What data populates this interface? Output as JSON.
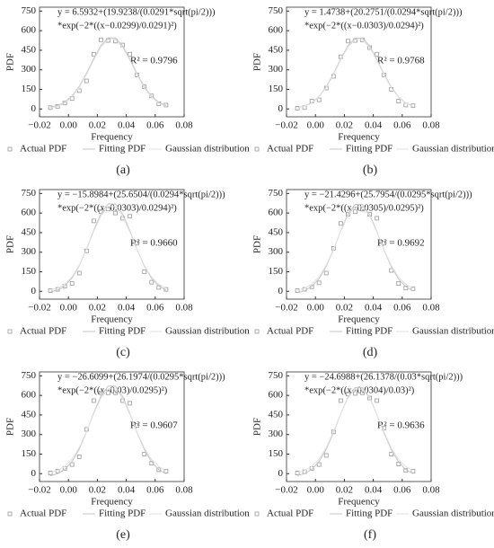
{
  "chart_data": [
    {
      "type": "scatter",
      "label": "(a)",
      "xlabel": "Frequency",
      "ylabel": "PDF",
      "equation": [
        "y = 6.5932+(19.9238/(0.0291*sqrt(pi/2)))",
        "*exp(−2*((x−0.0299)/0.0291)²)"
      ],
      "r2": "R² = 0.9796",
      "xlim": [
        -0.02,
        0.08
      ],
      "ylim": [
        -60,
        780
      ],
      "xticks": [
        {
          "value": -0.02,
          "label": "−0.02"
        },
        {
          "value": 0,
          "label": "0.00"
        },
        0.02,
        0.04,
        0.06,
        0.08
      ],
      "yticks": [
        0,
        150,
        300,
        450,
        600,
        750
      ],
      "x": [
        -0.0125,
        -0.0075,
        -0.0025,
        0.0025,
        0.0075,
        0.0125,
        0.0175,
        0.0225,
        0.0275,
        0.0325,
        0.0375,
        0.0425,
        0.0475,
        0.0525,
        0.0575,
        0.0625,
        0.0675
      ],
      "series": [
        {
          "name": "Actual PDF",
          "color": "#999999",
          "mode": "marker",
          "values": [
            10,
            20,
            45,
            80,
            140,
            215,
            420,
            530,
            525,
            520,
            490,
            420,
            260,
            170,
            100,
            40,
            30
          ]
        },
        {
          "name": "Fitting PDF",
          "color": "#c4c4c4",
          "mode": "line",
          "values": [
            14.4,
            26.7,
            52.4,
            99.1,
            173.3,
            273.7,
            386.4,
            486.5,
            545.3,
            544.0,
            483.3,
            381.7,
            269.2,
            169.9,
            97.1,
            51.0,
            26.0
          ]
        },
        {
          "name": "Gaussian distribution",
          "color": "#e2e2e2",
          "mode": "line",
          "values": [
            7.7,
            19.9,
            45.3,
            91.5,
            164.9,
            264.2,
            375.6,
            474.7,
            532.8,
            531.5,
            471.4,
            371.0,
            259.7,
            161.5,
            89.5,
            43.9,
            19.2
          ]
        }
      ]
    },
    {
      "type": "scatter",
      "label": "(b)",
      "xlabel": "Frequency",
      "ylabel": "PDF",
      "equation": [
        "y = 1.4738+(20.2751/(0.0294*sqrt(pi/2)))",
        "*exp(−2*((x−0.0303)/0.0294)²)"
      ],
      "r2": "R² = 0.9768",
      "xlim": [
        -0.02,
        0.08
      ],
      "ylim": [
        -60,
        780
      ],
      "xticks": [
        {
          "value": -0.02,
          "label": "−0.02"
        },
        {
          "value": 0,
          "label": "0.00"
        },
        0.02,
        0.04,
        0.06,
        0.08
      ],
      "yticks": [
        0,
        150,
        300,
        450,
        600,
        750
      ],
      "x": [
        -0.0125,
        -0.0075,
        -0.0025,
        0.0025,
        0.0075,
        0.0125,
        0.0175,
        0.0225,
        0.0275,
        0.0325,
        0.0375,
        0.0425,
        0.0475,
        0.0525,
        0.0575,
        0.0625,
        0.0675
      ],
      "series": [
        {
          "name": "Actual PDF",
          "color": "#999999",
          "mode": "marker",
          "values": [
            5,
            10,
            60,
            70,
            160,
            250,
            400,
            520,
            525,
            530,
            470,
            420,
            260,
            150,
            60,
            30,
            25
          ]
        },
        {
          "name": "Fitting PDF",
          "color": "#c4c4c4",
          "mode": "line",
          "values": [
            9.4,
            21.7,
            47.6,
            94.7,
            169.5,
            270.6,
            384.1,
            485.0,
            544.1,
            542.8,
            481.7,
            379.4,
            266.1,
            166.0,
            92.7,
            46.2,
            21.0
          ]
        },
        {
          "name": "Gaussian distribution",
          "color": "#e2e2e2",
          "mode": "line",
          "values": [
            7.7,
            19.9,
            45.3,
            91.5,
            164.9,
            264.2,
            375.6,
            474.7,
            532.8,
            531.5,
            471.4,
            371.0,
            259.7,
            161.5,
            89.5,
            43.9,
            19.2
          ]
        }
      ]
    },
    {
      "type": "scatter",
      "label": "(c)",
      "xlabel": "Frequency",
      "ylabel": "PDF",
      "equation": [
        "y = −15.8984+(25.6504/(0.0294*sqrt(pi/2)))",
        "*exp(−2*((x−0.0303)/0.0294)²)"
      ],
      "r2": "R² = 0.9660",
      "xlim": [
        -0.02,
        0.08
      ],
      "ylim": [
        -60,
        780
      ],
      "xticks": [
        {
          "value": -0.02,
          "label": "−0.02"
        },
        {
          "value": 0,
          "label": "0.00"
        },
        0.02,
        0.04,
        0.06,
        0.08
      ],
      "yticks": [
        0,
        150,
        300,
        450,
        600,
        750
      ],
      "x": [
        -0.0125,
        -0.0075,
        -0.0025,
        0.0025,
        0.0075,
        0.0125,
        0.0175,
        0.0225,
        0.0275,
        0.0325,
        0.0375,
        0.0425,
        0.0475,
        0.0525,
        0.0575,
        0.0625,
        0.0675
      ],
      "series": [
        {
          "name": "Actual PDF",
          "color": "#999999",
          "mode": "marker",
          "values": [
            5,
            15,
            40,
            60,
            140,
            310,
            540,
            610,
            630,
            600,
            560,
            575,
            370,
            150,
            70,
            30,
            15
          ]
        },
        {
          "name": "Fitting PDF",
          "color": "#c4c4c4",
          "mode": "line",
          "values": [
            -5.9,
            9.7,
            42.5,
            102.1,
            196.7,
            324.6,
            468.2,
            595.9,
            670.8,
            669.1,
            591.7,
            462.3,
            318.9,
            192.2,
            99.5,
            40.7,
            8.8
          ]
        },
        {
          "name": "Gaussian distribution",
          "color": "#e2e2e2",
          "mode": "line",
          "values": [
            9.4,
            24.3,
            55.4,
            111.9,
            201.6,
            322.9,
            459.1,
            580.1,
            651.2,
            649.6,
            576.2,
            453.4,
            317.5,
            197.3,
            109.4,
            53.7,
            23.4
          ]
        }
      ]
    },
    {
      "type": "scatter",
      "label": "(d)",
      "xlabel": "Frequency",
      "ylabel": "PDF",
      "equation": [
        "y = −21.4296+(25.7954/(0.0295*sqrt(pi/2)))",
        "*exp(−2*((x−0.0305)/0.0295)²)"
      ],
      "r2": "R² = 0.9692",
      "xlim": [
        -0.02,
        0.08
      ],
      "ylim": [
        -60,
        780
      ],
      "xticks": [
        {
          "value": -0.02,
          "label": "−0.02"
        },
        {
          "value": 0,
          "label": "0.00"
        },
        0.02,
        0.04,
        0.06,
        0.08
      ],
      "yticks": [
        0,
        150,
        300,
        450,
        600,
        750
      ],
      "x": [
        -0.0125,
        -0.0075,
        -0.0025,
        0.0025,
        0.0075,
        0.0125,
        0.0175,
        0.0225,
        0.0275,
        0.0325,
        0.0375,
        0.0425,
        0.0475,
        0.0525,
        0.0575,
        0.0625,
        0.0675
      ],
      "series": [
        {
          "name": "Actual PDF",
          "color": "#999999",
          "mode": "marker",
          "values": [
            5,
            15,
            35,
            65,
            140,
            330,
            520,
            590,
            610,
            630,
            590,
            560,
            370,
            160,
            60,
            25,
            20
          ]
        },
        {
          "name": "Fitting PDF",
          "color": "#c4c4c4",
          "mode": "line",
          "values": [
            -11.4,
            4.3,
            37.2,
            96.9,
            191.8,
            320.1,
            464.1,
            592.1,
            667.2,
            665.6,
            588.0,
            458.1,
            314.3,
            187.3,
            94.3,
            35.3,
            3.4
          ]
        },
        {
          "name": "Gaussian distribution",
          "color": "#e2e2e2",
          "mode": "line",
          "values": [
            9.4,
            24.3,
            55.4,
            111.9,
            201.6,
            322.9,
            459.1,
            580.1,
            651.2,
            649.6,
            576.2,
            453.4,
            317.5,
            197.3,
            109.4,
            53.7,
            23.4
          ]
        }
      ]
    },
    {
      "type": "scatter",
      "label": "(e)",
      "xlabel": "Frequency",
      "ylabel": "PDF",
      "equation": [
        "y = −26.6099+(26.1974/(0.0295*sqrt(pi/2)))",
        "*exp(−2*((x−0.03)/0.0295)²)"
      ],
      "r2": "R² = 0.9607",
      "xlim": [
        -0.02,
        0.08
      ],
      "ylim": [
        -60,
        780
      ],
      "xticks": [
        {
          "value": -0.02,
          "label": "−0.02"
        },
        {
          "value": 0,
          "label": "0.00"
        },
        0.02,
        0.04,
        0.06,
        0.08
      ],
      "yticks": [
        0,
        150,
        300,
        450,
        600,
        750
      ],
      "x": [
        -0.0125,
        -0.0075,
        -0.0025,
        0.0025,
        0.0075,
        0.0125,
        0.0175,
        0.0225,
        0.0275,
        0.0325,
        0.0375,
        0.0425,
        0.0475,
        0.0525,
        0.0575,
        0.0625,
        0.0675
      ],
      "series": [
        {
          "name": "Actual PDF",
          "color": "#999999",
          "mode": "marker",
          "values": [
            5,
            20,
            40,
            70,
            130,
            340,
            560,
            620,
            620,
            620,
            560,
            540,
            370,
            150,
            80,
            30,
            20
          ]
        },
        {
          "name": "Fitting PDF",
          "color": "#c4c4c4",
          "mode": "line",
          "values": [
            -16.5,
            -0.5,
            32.8,
            93.4,
            189.6,
            319.8,
            465.9,
            595.7,
            671.9,
            670.2,
            591.5,
            459.8,
            313.9,
            185.1,
            90.8,
            31.0,
            -1.5
          ]
        },
        {
          "name": "Gaussian distribution",
          "color": "#e2e2e2",
          "mode": "line",
          "values": [
            9.4,
            24.3,
            55.4,
            111.9,
            201.6,
            322.9,
            459.1,
            580.1,
            651.2,
            649.6,
            576.2,
            453.4,
            317.5,
            197.3,
            109.4,
            53.7,
            23.4
          ]
        }
      ]
    },
    {
      "type": "scatter",
      "label": "(f)",
      "xlabel": "Frequency",
      "ylabel": "PDF",
      "equation": [
        "y = −24.6988+(26.1378/(0.03*sqrt(pi/2)))",
        "*exp(−2*((x−0.0304)/0.03)²)"
      ],
      "r2": "R² = 0.9636",
      "xlim": [
        -0.02,
        0.08
      ],
      "ylim": [
        -60,
        780
      ],
      "xticks": [
        {
          "value": -0.02,
          "label": "−0.02"
        },
        {
          "value": 0,
          "label": "0.00"
        },
        0.02,
        0.04,
        0.06,
        0.08
      ],
      "yticks": [
        0,
        150,
        300,
        450,
        600,
        750
      ],
      "x": [
        -0.0125,
        -0.0075,
        -0.0025,
        0.0025,
        0.0075,
        0.0125,
        0.0175,
        0.0225,
        0.0275,
        0.0325,
        0.0375,
        0.0425,
        0.0475,
        0.0525,
        0.0575,
        0.0625,
        0.0675
      ],
      "series": [
        {
          "name": "Actual PDF",
          "color": "#999999",
          "mode": "marker",
          "values": [
            5,
            15,
            40,
            70,
            140,
            320,
            560,
            610,
            615,
            620,
            580,
            560,
            350,
            150,
            75,
            25,
            20
          ]
        },
        {
          "name": "Fitting PDF",
          "color": "#c4c4c4",
          "mode": "line",
          "values": [
            -14.8,
            0.9,
            33.6,
            93.1,
            187.6,
            315.3,
            458.7,
            586.2,
            661.0,
            659.3,
            582.0,
            452.8,
            309.6,
            183.1,
            90.5,
            31.8,
            0.0
          ]
        },
        {
          "name": "Gaussian distribution",
          "color": "#e2e2e2",
          "mode": "line",
          "values": [
            9.4,
            24.3,
            55.4,
            111.9,
            201.6,
            322.9,
            459.1,
            580.1,
            651.2,
            649.6,
            576.2,
            453.4,
            317.5,
            197.3,
            109.4,
            53.7,
            23.4
          ]
        }
      ]
    }
  ]
}
